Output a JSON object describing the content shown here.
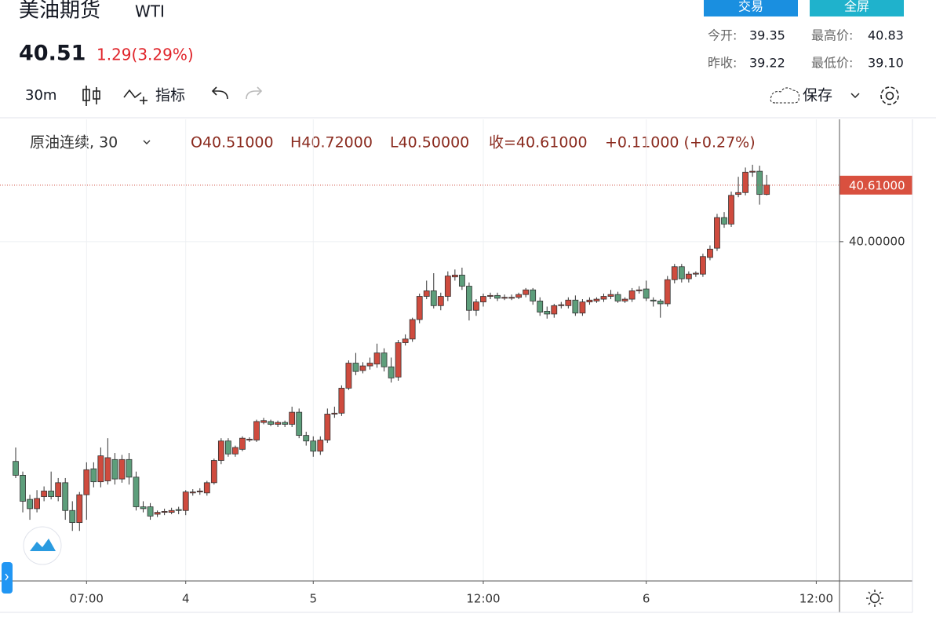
{
  "header": {
    "title": "美油期货",
    "symbol": "WTI",
    "price": "40.51",
    "change": "1.29(3.29%)",
    "trade_button": "交易",
    "fullscreen_button": "全屏",
    "stats": [
      {
        "label": "今开:",
        "value": "39.35"
      },
      {
        "label": "最高价:",
        "value": "40.83"
      },
      {
        "label": "昨收:",
        "value": "39.22"
      },
      {
        "label": "最低价:",
        "value": "39.10"
      }
    ]
  },
  "toolbar": {
    "interval": "30m",
    "indicators": "指标",
    "save": "保存"
  },
  "legend": {
    "symbol": "原油连续, 30",
    "open": "O40.51000",
    "high": "H40.72000",
    "low": "L40.50000",
    "close": "收=40.61000",
    "change": "+0.11000 (+0.27%)"
  },
  "chart_data": {
    "type": "candlestick",
    "up_color": "#cf4b3e",
    "down_color": "#5d9e7b",
    "ylim": [
      36.34,
      41.32
    ],
    "yticks": [
      {
        "value": 40,
        "label": "40.00000"
      }
    ],
    "last_price": {
      "value": 40.61,
      "label": "40.61000"
    },
    "grid": true,
    "categories": [
      null,
      null,
      null,
      null,
      null,
      null,
      null,
      null,
      null,
      null,
      "07:00",
      null,
      null,
      null,
      null,
      null,
      null,
      null,
      null,
      null,
      null,
      null,
      null,
      null,
      "4",
      null,
      null,
      null,
      null,
      null,
      null,
      null,
      null,
      null,
      null,
      null,
      null,
      null,
      null,
      null,
      null,
      null,
      "5",
      null,
      null,
      null,
      null,
      null,
      null,
      null,
      null,
      null,
      null,
      null,
      null,
      null,
      null,
      null,
      null,
      null,
      null,
      null,
      null,
      null,
      null,
      null,
      "12:00",
      null,
      null,
      null,
      null,
      null,
      null,
      null,
      null,
      null,
      null,
      null,
      null,
      null,
      null,
      null,
      null,
      null,
      null,
      null,
      null,
      null,
      null,
      "6",
      null,
      null,
      null,
      null,
      null,
      null,
      null,
      null,
      null,
      null,
      null,
      null,
      null,
      null,
      null,
      null,
      null,
      null,
      null,
      null,
      null,
      null,
      null,
      "12:00"
    ],
    "ohlc": [
      [
        37.63,
        37.78,
        37.45,
        37.48
      ],
      [
        37.48,
        37.52,
        37.08,
        37.2
      ],
      [
        37.22,
        37.27,
        37.0,
        37.12
      ],
      [
        37.12,
        37.32,
        37.08,
        37.23
      ],
      [
        37.25,
        37.36,
        37.2,
        37.31
      ],
      [
        37.31,
        37.52,
        37.22,
        37.25
      ],
      [
        37.25,
        37.45,
        37.2,
        37.4
      ],
      [
        37.4,
        37.45,
        37.0,
        37.1
      ],
      [
        37.1,
        37.2,
        36.88,
        36.97
      ],
      [
        36.97,
        37.3,
        36.88,
        37.27
      ],
      [
        37.27,
        37.62,
        37.0,
        37.54
      ],
      [
        37.55,
        37.62,
        37.35,
        37.41
      ],
      [
        37.41,
        37.78,
        37.35,
        37.69
      ],
      [
        37.42,
        37.88,
        37.38,
        37.67
      ],
      [
        37.65,
        37.72,
        37.38,
        37.44
      ],
      [
        37.44,
        37.7,
        37.4,
        37.65
      ],
      [
        37.65,
        37.72,
        37.38,
        37.46
      ],
      [
        37.46,
        37.52,
        37.1,
        37.14
      ],
      [
        37.14,
        37.2,
        37.08,
        37.12
      ],
      [
        37.14,
        37.18,
        37.0,
        37.04
      ],
      [
        37.06,
        37.1,
        37.03,
        37.08
      ],
      [
        37.08,
        37.12,
        37.05,
        37.09
      ],
      [
        37.08,
        37.13,
        37.06,
        37.1
      ],
      [
        37.11,
        37.14,
        37.06,
        37.1
      ],
      [
        37.1,
        37.32,
        37.05,
        37.3
      ],
      [
        37.29,
        37.33,
        37.26,
        37.3
      ],
      [
        37.3,
        37.34,
        37.27,
        37.31
      ],
      [
        37.29,
        37.42,
        37.26,
        37.4
      ],
      [
        37.4,
        37.66,
        37.38,
        37.64
      ],
      [
        37.64,
        37.88,
        37.6,
        37.85
      ],
      [
        37.85,
        37.88,
        37.68,
        37.71
      ],
      [
        37.71,
        37.8,
        37.68,
        37.78
      ],
      [
        37.76,
        37.9,
        37.74,
        37.88
      ],
      [
        37.86,
        37.89,
        37.84,
        37.87
      ],
      [
        37.86,
        38.08,
        37.84,
        38.06
      ],
      [
        38.05,
        38.1,
        38.03,
        38.07
      ],
      [
        38.06,
        38.08,
        38.01,
        38.03
      ],
      [
        38.03,
        38.07,
        38.0,
        38.05
      ],
      [
        38.05,
        38.07,
        38.0,
        38.03
      ],
      [
        38.03,
        38.22,
        38.0,
        38.16
      ],
      [
        38.16,
        38.2,
        37.88,
        37.91
      ],
      [
        37.91,
        37.95,
        37.8,
        37.85
      ],
      [
        37.85,
        37.9,
        37.68,
        37.74
      ],
      [
        37.74,
        37.9,
        37.7,
        37.86
      ],
      [
        37.86,
        38.2,
        37.83,
        38.14
      ],
      [
        38.14,
        38.22,
        38.1,
        38.15
      ],
      [
        38.15,
        38.45,
        38.12,
        38.42
      ],
      [
        38.42,
        38.72,
        38.4,
        38.69
      ],
      [
        38.69,
        38.8,
        38.56,
        38.6
      ],
      [
        38.61,
        38.7,
        38.58,
        38.66
      ],
      [
        38.66,
        38.75,
        38.62,
        38.69
      ],
      [
        38.68,
        38.9,
        38.64,
        38.8
      ],
      [
        38.8,
        38.85,
        38.6,
        38.65
      ],
      [
        38.65,
        38.75,
        38.48,
        38.53
      ],
      [
        38.54,
        38.94,
        38.5,
        38.91
      ],
      [
        38.91,
        39.0,
        38.88,
        38.95
      ],
      [
        38.95,
        39.18,
        38.92,
        39.16
      ],
      [
        39.16,
        39.44,
        39.12,
        39.41
      ],
      [
        39.41,
        39.58,
        39.38,
        39.47
      ],
      [
        39.47,
        39.66,
        39.28,
        39.31
      ],
      [
        39.31,
        39.45,
        39.26,
        39.41
      ],
      [
        39.41,
        39.68,
        39.36,
        39.63
      ],
      [
        39.62,
        39.7,
        39.58,
        39.64
      ],
      [
        39.64,
        39.72,
        39.48,
        39.52
      ],
      [
        39.52,
        39.56,
        39.15,
        39.26
      ],
      [
        39.26,
        39.38,
        39.2,
        39.35
      ],
      [
        39.35,
        39.44,
        39.3,
        39.41
      ],
      [
        39.41,
        39.45,
        39.38,
        39.42
      ],
      [
        39.42,
        39.45,
        39.36,
        39.39
      ],
      [
        39.39,
        39.43,
        39.37,
        39.4
      ],
      [
        39.39,
        39.43,
        39.37,
        39.4
      ],
      [
        39.4,
        39.45,
        39.38,
        39.43
      ],
      [
        39.43,
        39.5,
        39.4,
        39.48
      ],
      [
        39.48,
        39.5,
        39.32,
        39.36
      ],
      [
        39.36,
        39.4,
        39.2,
        39.24
      ],
      [
        39.25,
        39.3,
        39.17,
        39.22
      ],
      [
        39.22,
        39.33,
        39.18,
        39.31
      ],
      [
        39.31,
        39.35,
        39.28,
        39.32
      ],
      [
        39.31,
        39.4,
        39.28,
        39.37
      ],
      [
        39.37,
        39.42,
        39.2,
        39.23
      ],
      [
        39.23,
        39.38,
        39.2,
        39.35
      ],
      [
        39.35,
        39.4,
        39.32,
        39.37
      ],
      [
        39.36,
        39.4,
        39.34,
        39.38
      ],
      [
        39.38,
        39.44,
        39.35,
        39.41
      ],
      [
        39.41,
        39.48,
        39.38,
        39.43
      ],
      [
        39.43,
        39.46,
        39.34,
        39.36
      ],
      [
        39.36,
        39.4,
        39.34,
        39.38
      ],
      [
        39.38,
        39.5,
        39.35,
        39.47
      ],
      [
        39.47,
        39.52,
        39.44,
        39.48
      ],
      [
        39.49,
        39.58,
        39.36,
        39.39
      ],
      [
        39.37,
        39.4,
        39.3,
        39.36
      ],
      [
        39.36,
        39.38,
        39.18,
        39.33
      ],
      [
        39.33,
        39.63,
        39.3,
        39.59
      ],
      [
        39.59,
        39.76,
        39.55,
        39.73
      ],
      [
        39.73,
        39.76,
        39.56,
        39.6
      ],
      [
        39.6,
        39.68,
        39.56,
        39.65
      ],
      [
        39.65,
        39.68,
        39.62,
        39.66
      ],
      [
        39.65,
        39.87,
        39.62,
        39.84
      ],
      [
        39.83,
        39.96,
        39.8,
        39.92
      ],
      [
        39.93,
        40.3,
        39.9,
        40.26
      ],
      [
        40.26,
        40.32,
        40.15,
        40.19
      ],
      [
        40.19,
        40.54,
        40.16,
        40.5
      ],
      [
        40.51,
        40.7,
        40.48,
        40.53
      ],
      [
        40.53,
        40.8,
        40.5,
        40.75
      ],
      [
        40.75,
        40.83,
        40.7,
        40.76
      ],
      [
        40.76,
        40.82,
        40.4,
        40.51
      ],
      [
        40.51,
        40.72,
        40.5,
        40.61
      ],
      null,
      null,
      null,
      null,
      null,
      null,
      null
    ]
  }
}
